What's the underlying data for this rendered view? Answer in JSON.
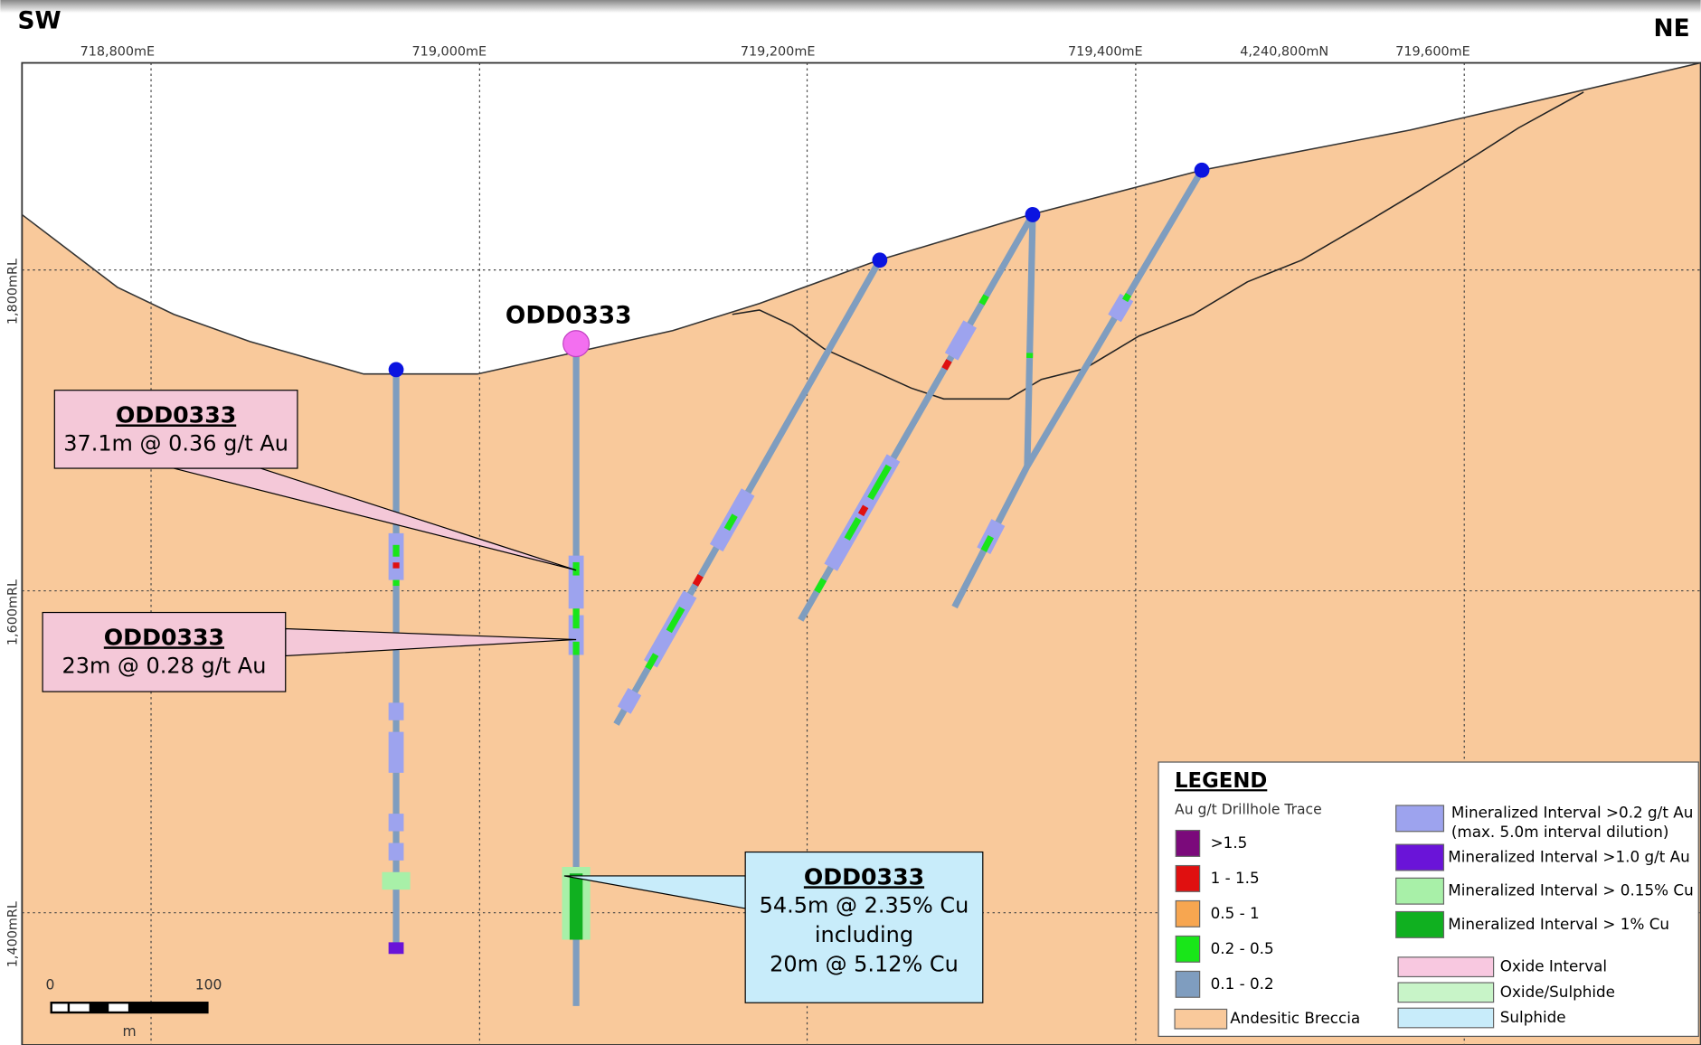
{
  "orientation": {
    "left": "SW",
    "right": "NE"
  },
  "easting_labels": [
    "718,800mE",
    "719,000mE",
    "719,200mE",
    "719,400mE",
    "4,240,800mN",
    "719,600mE"
  ],
  "rl_labels": [
    "1,800mRL",
    "1,600mRL",
    "1,400mRL"
  ],
  "hole_label": "ODD0333",
  "callouts": [
    {
      "hole": "ODD0333",
      "lines": [
        "37.1m @ 0.36 g/t Au"
      ]
    },
    {
      "hole": "ODD0333",
      "lines": [
        "23m @ 0.28 g/t Au"
      ]
    },
    {
      "hole": "ODD0333",
      "lines": [
        "54.5m @ 2.35% Cu",
        "including",
        "20m @ 5.12% Cu"
      ]
    }
  ],
  "scale_bar": {
    "labels": [
      "0",
      "100"
    ],
    "unit": "m"
  },
  "legend": {
    "title": "LEGEND",
    "au_heading": "Au g/t Drillhole Trace",
    "au_classes": [
      {
        "label": ">1.5",
        "color": "#7b0a7b"
      },
      {
        "label": "1 - 1.5",
        "color": "#e01010"
      },
      {
        "label": "0.5 - 1",
        "color": "#f7a650"
      },
      {
        "label": "0.2 - 0.5",
        "color": "#19e619"
      },
      {
        "label": "0.1 - 0.2",
        "color": "#7f9dbf"
      }
    ],
    "intervals": [
      {
        "lines": [
          "Mineralized Interval >0.2 g/t Au",
          "(max. 5.0m interval dilution)"
        ],
        "color": "#9da3ee"
      },
      {
        "lines": [
          "Mineralized Interval >1.0 g/t Au"
        ],
        "color": "#6a14d8"
      },
      {
        "lines": [
          "Mineralized Interval > 0.15% Cu"
        ],
        "color": "#a8f0a8"
      },
      {
        "lines": [
          "Mineralized Interval > 1% Cu"
        ],
        "color": "#10b020"
      }
    ],
    "zones": [
      {
        "label": "Oxide Interval",
        "color": "#f8c8e0"
      },
      {
        "label": "Oxide/Sulphide",
        "color": "#c8f4c8"
      },
      {
        "label": "Sulphide",
        "color": "#c8ecfa"
      }
    ],
    "lithology": {
      "label": "Andesitic Breccia",
      "color": "#f9c99b"
    }
  }
}
